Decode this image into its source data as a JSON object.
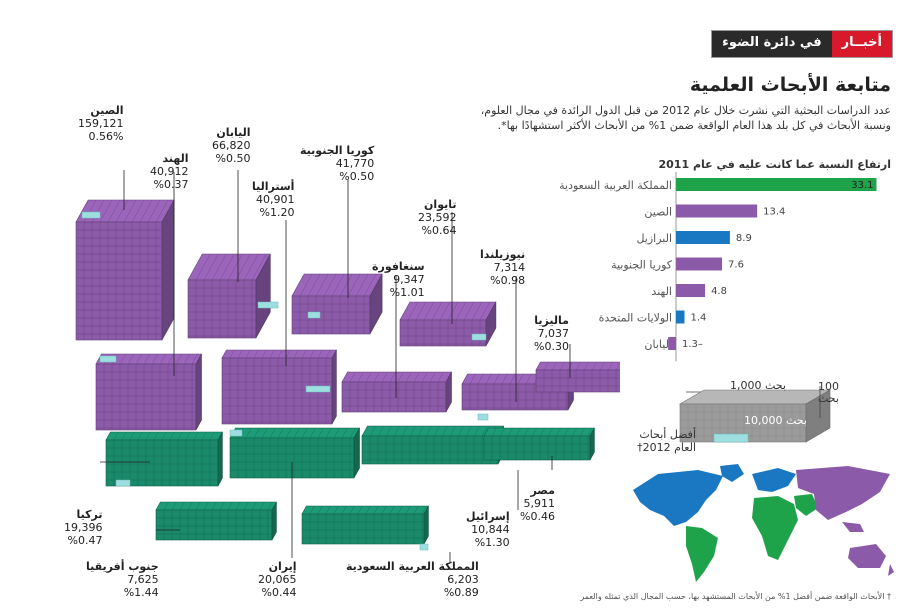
{
  "header": {
    "section_dark": "في دائرة الضوء",
    "section_red": "أخبــار"
  },
  "title": "متابعة الأبحاث العلمية",
  "description": [
    "عدد الدراسات البحثية التي نشرت خلال عام 2012 من قبل الدول الرائدة في مجال العلوم،",
    "ونسبة الأبحاث في كل بلد هذا العام الواقعة ضمن 1% من الأبحاث الأكثر استشهادًا بها*."
  ],
  "chart_title": "ارتفاع النسبة عما كانت عليه في عام 2011",
  "colors": {
    "saudi_bar": "#1fa34a",
    "purple": "#8b5aa8",
    "blue": "#1a78c2",
    "teal_block": "#1a8a6a",
    "cyan_top": "#9ddfe0",
    "gray_block": "#9a9a9a"
  },
  "chart_data": {
    "type": "bar",
    "orientation": "horizontal",
    "categories": [
      "المملكة العربية السعودية",
      "الصين",
      "البرازيل",
      "كوريا الجنوبية",
      "الهند",
      "الولايات المتحدة",
      "اليابان"
    ],
    "values": [
      33.1,
      13.4,
      8.9,
      7.6,
      4.8,
      1.4,
      -1.3
    ],
    "value_labels": [
      "33.1",
      "13.4",
      "8.9",
      "7.6",
      "4.8",
      "1.4",
      "1.3–"
    ],
    "bar_colors": [
      "#1fa34a",
      "#8b5aa8",
      "#1a78c2",
      "#8b5aa8",
      "#8b5aa8",
      "#1a78c2",
      "#8b5aa8"
    ]
  },
  "countries": [
    {
      "name": "الصين",
      "papers": "159,121",
      "pct": "0.56%"
    },
    {
      "name": "الهند",
      "papers": "40,912",
      "pct": "%0.37"
    },
    {
      "name": "اليابان",
      "papers": "66,820",
      "pct": "%0.50"
    },
    {
      "name": "أستراليا",
      "papers": "40,901",
      "pct": "%1.20"
    },
    {
      "name": "كوريا الجنوبية",
      "papers": "41,770",
      "pct": "%0.50"
    },
    {
      "name": "تايوان",
      "papers": "23,592",
      "pct": "%0.64"
    },
    {
      "name": "سنغافورة",
      "papers": "9,347",
      "pct": "%1.01"
    },
    {
      "name": "نيوزيلندا",
      "papers": "7,314",
      "pct": "%0.98"
    },
    {
      "name": "ماليزيا",
      "papers": "7,037",
      "pct": "%0.30"
    },
    {
      "name": "تركيا",
      "papers": "19,396",
      "pct": "%0.47"
    },
    {
      "name": "مصر",
      "papers": "5,911",
      "pct": "%0.46"
    },
    {
      "name": "إسرائيل",
      "papers": "10,844",
      "pct": "%1.30"
    },
    {
      "name": "جنوب أفريقيا",
      "papers": "7,625",
      "pct": "%1.44"
    },
    {
      "name": "إيران",
      "papers": "20,065",
      "pct": "%0.44"
    },
    {
      "name": "المملكة العربية السعودية",
      "papers": "6,203",
      "pct": "%0.89"
    }
  ],
  "legend": {
    "thousand": "1,000 بحث",
    "hundred": "100 بحث",
    "ten_thousand": "10,000 بحث",
    "top_papers": "أفضل أبحاث العام 2012†"
  },
  "footnote": "† الأبحاث الواقعة ضمن أفضل 1% من الأبحاث المستشهد بها، حسب المجال الذي تمثله والعمر"
}
